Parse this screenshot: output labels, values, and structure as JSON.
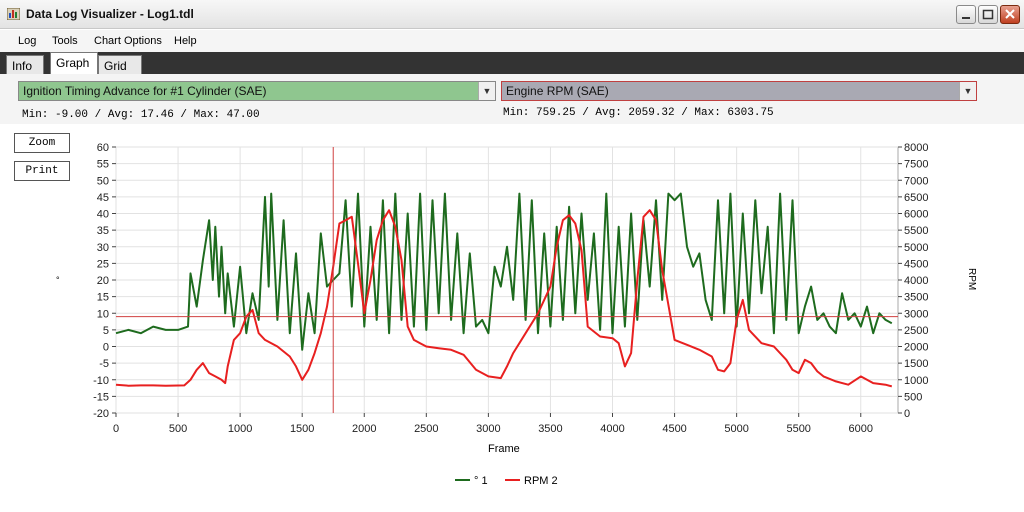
{
  "window": {
    "title": "Data Log Visualizer - Log1.tdl"
  },
  "menu": [
    "Log",
    "Tools",
    "Chart Options",
    "Help"
  ],
  "tabs": [
    "Info",
    "Graph",
    "Grid"
  ],
  "selector_left": {
    "value": "Ignition Timing Advance for #1 Cylinder (SAE)",
    "stats": "Min: -9.00 / Avg: 17.46 / Max: 47.00",
    "color": "#8fc68f"
  },
  "selector_right": {
    "value": "Engine RPM (SAE)",
    "stats": "Min: 759.25 / Avg: 2059.32 / Max: 6303.75",
    "color": "#a9a9b3"
  },
  "buttons": {
    "zoom": "Zoom",
    "print": "Print"
  },
  "colors": {
    "series1": "#1e6b1e",
    "series2": "#e82020",
    "cursor": "#d04040"
  },
  "chart_data": {
    "type": "line",
    "xlabel": "Frame",
    "ylabel": "°",
    "y2label": "RPM",
    "xlim": [
      0,
      6300
    ],
    "ylim": [
      -20,
      60
    ],
    "y2lim": [
      0,
      8000
    ],
    "x_ticks": [
      "0",
      "500",
      "1000",
      "1500",
      "2000",
      "2500",
      "3000",
      "3500",
      "4000",
      "4500",
      "5000",
      "5500",
      "6000"
    ],
    "y_ticks": [
      "60",
      "55",
      "50",
      "45",
      "40",
      "35",
      "30",
      "25",
      "20",
      "15",
      "10",
      "5",
      "0",
      "-5",
      "-10",
      "-15",
      "-20"
    ],
    "y2_ticks": [
      "8000",
      "7500",
      "7000",
      "6500",
      "6000",
      "5500",
      "5000",
      "4500",
      "4000",
      "3500",
      "3000",
      "2500",
      "2000",
      "1500",
      "1000",
      "500",
      "0"
    ],
    "cursor_x": 1750,
    "cursor_y": 9,
    "legend": [
      "° 1",
      "RPM 2"
    ],
    "series": [
      {
        "name": "° 1",
        "axis": "left",
        "x": [
          0,
          100,
          200,
          300,
          400,
          500,
          580,
          600,
          650,
          700,
          750,
          780,
          800,
          830,
          850,
          880,
          900,
          950,
          1000,
          1050,
          1100,
          1150,
          1200,
          1230,
          1250,
          1300,
          1350,
          1400,
          1450,
          1500,
          1550,
          1600,
          1650,
          1700,
          1750,
          1800,
          1850,
          1900,
          1950,
          2000,
          2050,
          2100,
          2150,
          2200,
          2250,
          2300,
          2350,
          2400,
          2450,
          2500,
          2550,
          2600,
          2650,
          2700,
          2750,
          2800,
          2850,
          2900,
          2950,
          3000,
          3050,
          3100,
          3150,
          3200,
          3250,
          3300,
          3350,
          3400,
          3450,
          3500,
          3550,
          3600,
          3650,
          3700,
          3750,
          3800,
          3850,
          3900,
          3950,
          4000,
          4050,
          4100,
          4150,
          4200,
          4250,
          4300,
          4350,
          4400,
          4450,
          4500,
          4550,
          4600,
          4650,
          4700,
          4750,
          4800,
          4850,
          4900,
          4950,
          5000,
          5050,
          5100,
          5150,
          5200,
          5250,
          5300,
          5350,
          5400,
          5450,
          5500,
          5550,
          5600,
          5650,
          5700,
          5750,
          5800,
          5850,
          5900,
          5950,
          6000,
          6050,
          6100,
          6150,
          6200,
          6250
        ],
        "y": [
          4,
          5,
          4,
          6,
          5,
          5,
          6,
          22,
          12,
          26,
          38,
          20,
          36,
          15,
          30,
          10,
          22,
          6,
          24,
          4,
          16,
          8,
          45,
          18,
          46,
          8,
          38,
          4,
          28,
          -1,
          16,
          4,
          34,
          18,
          20,
          22,
          44,
          12,
          46,
          6,
          36,
          8,
          44,
          4,
          46,
          8,
          40,
          6,
          46,
          5,
          44,
          10,
          46,
          8,
          34,
          4,
          28,
          6,
          8,
          4,
          24,
          18,
          30,
          14,
          46,
          8,
          44,
          4,
          34,
          6,
          36,
          8,
          42,
          10,
          40,
          14,
          34,
          5,
          46,
          4,
          36,
          6,
          40,
          8,
          38,
          18,
          44,
          14,
          46,
          44,
          46,
          30,
          24,
          28,
          14,
          8,
          44,
          10,
          46,
          6,
          40,
          10,
          44,
          16,
          36,
          4,
          46,
          8,
          44,
          4,
          12,
          18,
          8,
          10,
          6,
          4,
          16,
          8,
          10,
          6,
          12,
          4,
          10,
          8,
          7
        ],
        "dash": false
      },
      {
        "name": "RPM 2",
        "axis": "right",
        "x": [
          0,
          100,
          200,
          300,
          400,
          550,
          600,
          650,
          700,
          750,
          800,
          850,
          880,
          900,
          950,
          1000,
          1050,
          1100,
          1150,
          1200,
          1300,
          1400,
          1450,
          1500,
          1550,
          1600,
          1650,
          1700,
          1750,
          1800,
          1850,
          1900,
          1950,
          2000,
          2050,
          2100,
          2150,
          2200,
          2250,
          2300,
          2350,
          2400,
          2450,
          2500,
          2600,
          2700,
          2800,
          2900,
          3000,
          3100,
          3150,
          3200,
          3300,
          3400,
          3500,
          3550,
          3600,
          3650,
          3700,
          3750,
          3800,
          3900,
          4000,
          4050,
          4100,
          4150,
          4200,
          4250,
          4300,
          4350,
          4400,
          4500,
          4600,
          4700,
          4800,
          4850,
          4900,
          4950,
          5000,
          5050,
          5100,
          5200,
          5300,
          5400,
          5450,
          5500,
          5550,
          5600,
          5650,
          5700,
          5800,
          5900,
          6000,
          6100,
          6200,
          6250
        ],
        "y": [
          850,
          820,
          830,
          830,
          820,
          830,
          1000,
          1300,
          1500,
          1200,
          1100,
          1000,
          900,
          1400,
          2200,
          2400,
          2900,
          3100,
          2400,
          2200,
          2000,
          1700,
          1400,
          1000,
          1300,
          1800,
          2400,
          3200,
          4400,
          5700,
          5800,
          5900,
          4500,
          3000,
          4000,
          5200,
          5800,
          6100,
          5600,
          4600,
          2600,
          2200,
          2100,
          2000,
          1950,
          1900,
          1750,
          1300,
          1100,
          1050,
          1400,
          1800,
          2400,
          3000,
          3800,
          5000,
          5800,
          5950,
          5700,
          4900,
          2600,
          2300,
          2250,
          2100,
          1400,
          1800,
          4000,
          5900,
          6100,
          5800,
          4300,
          2200,
          2050,
          1900,
          1700,
          1300,
          1250,
          1500,
          2800,
          3400,
          2500,
          2100,
          2000,
          1600,
          1300,
          1200,
          1600,
          1500,
          1250,
          1100,
          950,
          850,
          1100,
          900,
          850,
          800
        ],
        "dash": false
      }
    ]
  }
}
